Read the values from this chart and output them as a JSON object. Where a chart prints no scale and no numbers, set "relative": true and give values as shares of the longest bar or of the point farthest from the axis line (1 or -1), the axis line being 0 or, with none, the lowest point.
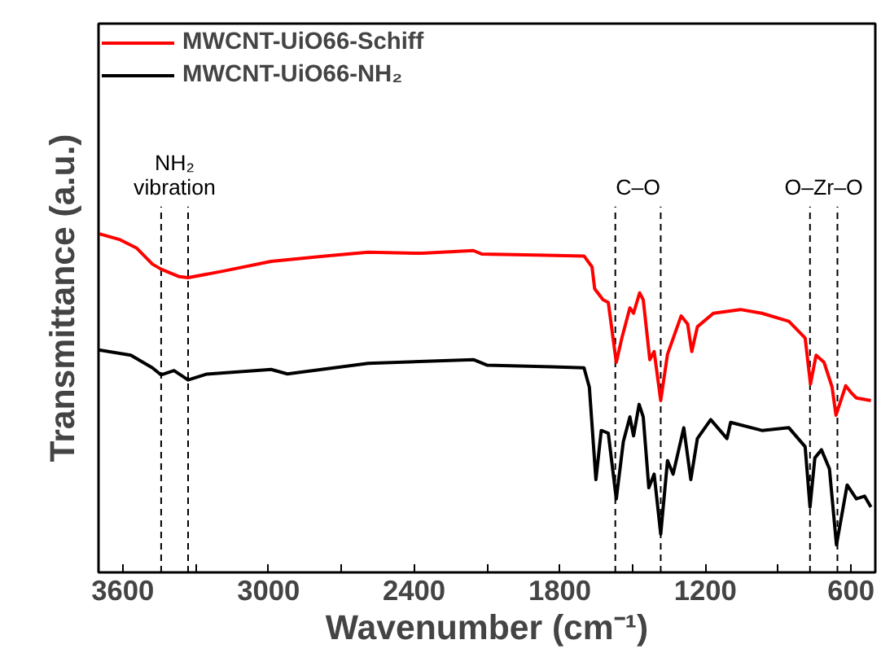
{
  "chart_data": {
    "type": "line",
    "xlabel": "Wavenumber (cm⁻¹)",
    "ylabel": "Transmittance (a.u.)",
    "relative": true,
    "tick_labels": "x",
    "grid": false,
    "legend": "top left",
    "line_style": "solid",
    "marker": "none",
    "xlim": [
      3700,
      500
    ],
    "xticks": [
      3600,
      {
        "value": 3300,
        "label": null
      },
      3000,
      {
        "value": 2700,
        "label": null
      },
      2400,
      {
        "value": 2100,
        "label": null
      },
      1800,
      {
        "value": 1500,
        "label": null
      },
      1200,
      {
        "value": 900,
        "label": null
      },
      600
    ],
    "series": [
      {
        "name": "MWCNT-UiO66-Schiff",
        "color": "#ff0000",
        "x": [
          3700,
          3611,
          3544,
          3478,
          3442,
          3367,
          3331,
          3189,
          2989,
          2767,
          2589,
          2367,
          2156,
          2122,
          1900,
          1700,
          1667,
          1656,
          1622,
          1600,
          1567,
          1544,
          1511,
          1496,
          1471,
          1456,
          1429,
          1411,
          1384,
          1356,
          1300,
          1273,
          1256,
          1233,
          1167,
          1056,
          967,
          856,
          789,
          767,
          744,
          711,
          678,
          662,
          622,
          600,
          578,
          518
        ],
        "values": [
          1.0,
          0.982,
          0.958,
          0.91,
          0.895,
          0.873,
          0.87,
          0.889,
          0.918,
          0.934,
          0.945,
          0.942,
          0.95,
          0.94,
          0.937,
          0.934,
          0.902,
          0.837,
          0.805,
          0.797,
          0.62,
          0.692,
          0.781,
          0.765,
          0.825,
          0.805,
          0.628,
          0.652,
          0.507,
          0.644,
          0.757,
          0.733,
          0.652,
          0.725,
          0.765,
          0.776,
          0.765,
          0.741,
          0.692,
          0.556,
          0.641,
          0.62,
          0.547,
          0.464,
          0.551,
          0.531,
          0.515,
          0.507
        ]
      },
      {
        "name": "MWCNT-UiO66-NH₂",
        "color": "#000000",
        "x": [
          3700,
          3567,
          3478,
          3442,
          3389,
          3331,
          3256,
          2989,
          2922,
          2589,
          2156,
          2100,
          1833,
          1700,
          1678,
          1651,
          1629,
          1600,
          1567,
          1538,
          1511,
          1496,
          1473,
          1456,
          1433,
          1411,
          1384,
          1356,
          1333,
          1289,
          1260,
          1233,
          1178,
          1111,
          1096,
          967,
          856,
          789,
          769,
          749,
          722,
          689,
          660,
          616,
          578,
          544,
          518
        ],
        "values": [
          0.657,
          0.641,
          0.604,
          0.583,
          0.596,
          0.568,
          0.585,
          0.599,
          0.586,
          0.617,
          0.628,
          0.612,
          0.607,
          0.604,
          0.547,
          0.274,
          0.419,
          0.411,
          0.217,
          0.386,
          0.459,
          0.403,
          0.496,
          0.459,
          0.25,
          0.29,
          0.113,
          0.33,
          0.29,
          0.427,
          0.274,
          0.395,
          0.451,
          0.395,
          0.443,
          0.419,
          0.427,
          0.371,
          0.193,
          0.338,
          0.362,
          0.306,
          0.081,
          0.258,
          0.217,
          0.225,
          0.193
        ]
      }
    ],
    "ref_lines": [
      {
        "axis": "x",
        "value": 3442,
        "line_style": "dashed",
        "color": "#000000",
        "label": "NH₂ vibration"
      },
      {
        "axis": "x",
        "value": 3331,
        "line_style": "dashed",
        "color": "#000000"
      },
      {
        "axis": "x",
        "value": 1571,
        "line_style": "dashed",
        "color": "#000000",
        "label": "C–O"
      },
      {
        "axis": "x",
        "value": 1384,
        "line_style": "dashed",
        "color": "#000000"
      },
      {
        "axis": "x",
        "value": 769,
        "line_style": "dashed",
        "color": "#000000",
        "label": "O–Zr–O"
      },
      {
        "axis": "x",
        "value": 656,
        "line_style": "dashed",
        "color": "#000000"
      }
    ]
  }
}
